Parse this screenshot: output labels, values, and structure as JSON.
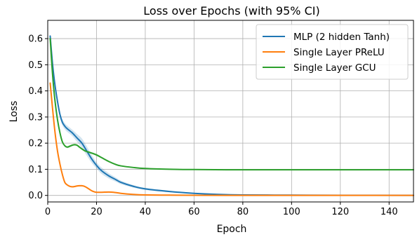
{
  "chart_data": {
    "type": "line",
    "title": "Loss over Epochs (with 95% CI)",
    "xlabel": "Epoch",
    "ylabel": "Loss",
    "xlim": [
      0,
      150
    ],
    "ylim": [
      -0.025,
      0.67
    ],
    "xticks": [
      0,
      20,
      40,
      60,
      80,
      100,
      120,
      140
    ],
    "yticks": [
      0.0,
      0.1,
      0.2,
      0.3,
      0.4,
      0.5,
      0.6
    ],
    "grid": true,
    "legend_position": "upper-right",
    "series": [
      {
        "name": "MLP (2 hidden Tanh)",
        "color": "#1f77b4",
        "x": [
          1,
          2,
          3,
          4,
          5,
          6,
          7,
          8,
          10,
          12,
          14,
          16,
          18,
          20,
          22,
          25,
          28,
          30,
          35,
          40,
          50,
          60,
          70,
          80,
          100,
          120,
          150
        ],
        "y": [
          0.61,
          0.5,
          0.42,
          0.36,
          0.31,
          0.28,
          0.265,
          0.255,
          0.24,
          0.22,
          0.2,
          0.17,
          0.14,
          0.115,
          0.095,
          0.075,
          0.06,
          0.05,
          0.035,
          0.025,
          0.015,
          0.008,
          0.004,
          0.002,
          0.001,
          0.0005,
          0.0002
        ],
        "ci": [
          0.0,
          0.01,
          0.012,
          0.012,
          0.012,
          0.012,
          0.012,
          0.012,
          0.012,
          0.015,
          0.018,
          0.018,
          0.015,
          0.012,
          0.012,
          0.01,
          0.008,
          0.007,
          0.005,
          0.004,
          0.003,
          0.002,
          0.001,
          0.001,
          0.0005,
          0.0,
          0.0
        ]
      },
      {
        "name": "Single Layer PReLU",
        "color": "#ff7f0e",
        "x": [
          1,
          2,
          3,
          4,
          5,
          6,
          7,
          8,
          9,
          10,
          11,
          12,
          13,
          14,
          15,
          16,
          17,
          18,
          19,
          20,
          22,
          25,
          27,
          30,
          35,
          40,
          50,
          60,
          80,
          100,
          120,
          150
        ],
        "y": [
          0.43,
          0.33,
          0.24,
          0.17,
          0.12,
          0.08,
          0.05,
          0.04,
          0.035,
          0.033,
          0.034,
          0.036,
          0.037,
          0.037,
          0.035,
          0.03,
          0.024,
          0.018,
          0.014,
          0.012,
          0.012,
          0.013,
          0.012,
          0.008,
          0.004,
          0.002,
          0.001,
          0.0005,
          0.0002,
          0.0001,
          0.0001,
          0.0001
        ],
        "ci": [
          0.0,
          0.005,
          0.005,
          0.005,
          0.005,
          0.004,
          0.003,
          0.003,
          0.003,
          0.003,
          0.003,
          0.003,
          0.003,
          0.003,
          0.003,
          0.003,
          0.003,
          0.002,
          0.002,
          0.002,
          0.002,
          0.002,
          0.002,
          0.002,
          0.001,
          0.001,
          0.0,
          0.0,
          0.0,
          0.0,
          0.0,
          0.0
        ]
      },
      {
        "name": "Single Layer GCU",
        "color": "#2ca02c",
        "x": [
          1,
          2,
          3,
          4,
          5,
          6,
          7,
          8,
          9,
          10,
          11,
          12,
          13,
          14,
          15,
          16,
          18,
          20,
          22,
          25,
          28,
          30,
          35,
          40,
          50,
          60,
          80,
          100,
          120,
          150
        ],
        "y": [
          0.6,
          0.46,
          0.36,
          0.29,
          0.24,
          0.205,
          0.19,
          0.185,
          0.188,
          0.192,
          0.194,
          0.192,
          0.185,
          0.178,
          0.172,
          0.168,
          0.162,
          0.155,
          0.145,
          0.13,
          0.118,
          0.113,
          0.107,
          0.103,
          0.1,
          0.099,
          0.098,
          0.098,
          0.098,
          0.098
        ],
        "ci": [
          0.0,
          0.004,
          0.004,
          0.004,
          0.004,
          0.004,
          0.004,
          0.004,
          0.004,
          0.004,
          0.004,
          0.004,
          0.004,
          0.004,
          0.004,
          0.004,
          0.004,
          0.004,
          0.003,
          0.003,
          0.003,
          0.002,
          0.002,
          0.002,
          0.001,
          0.001,
          0.0,
          0.0,
          0.0,
          0.0
        ]
      }
    ]
  }
}
